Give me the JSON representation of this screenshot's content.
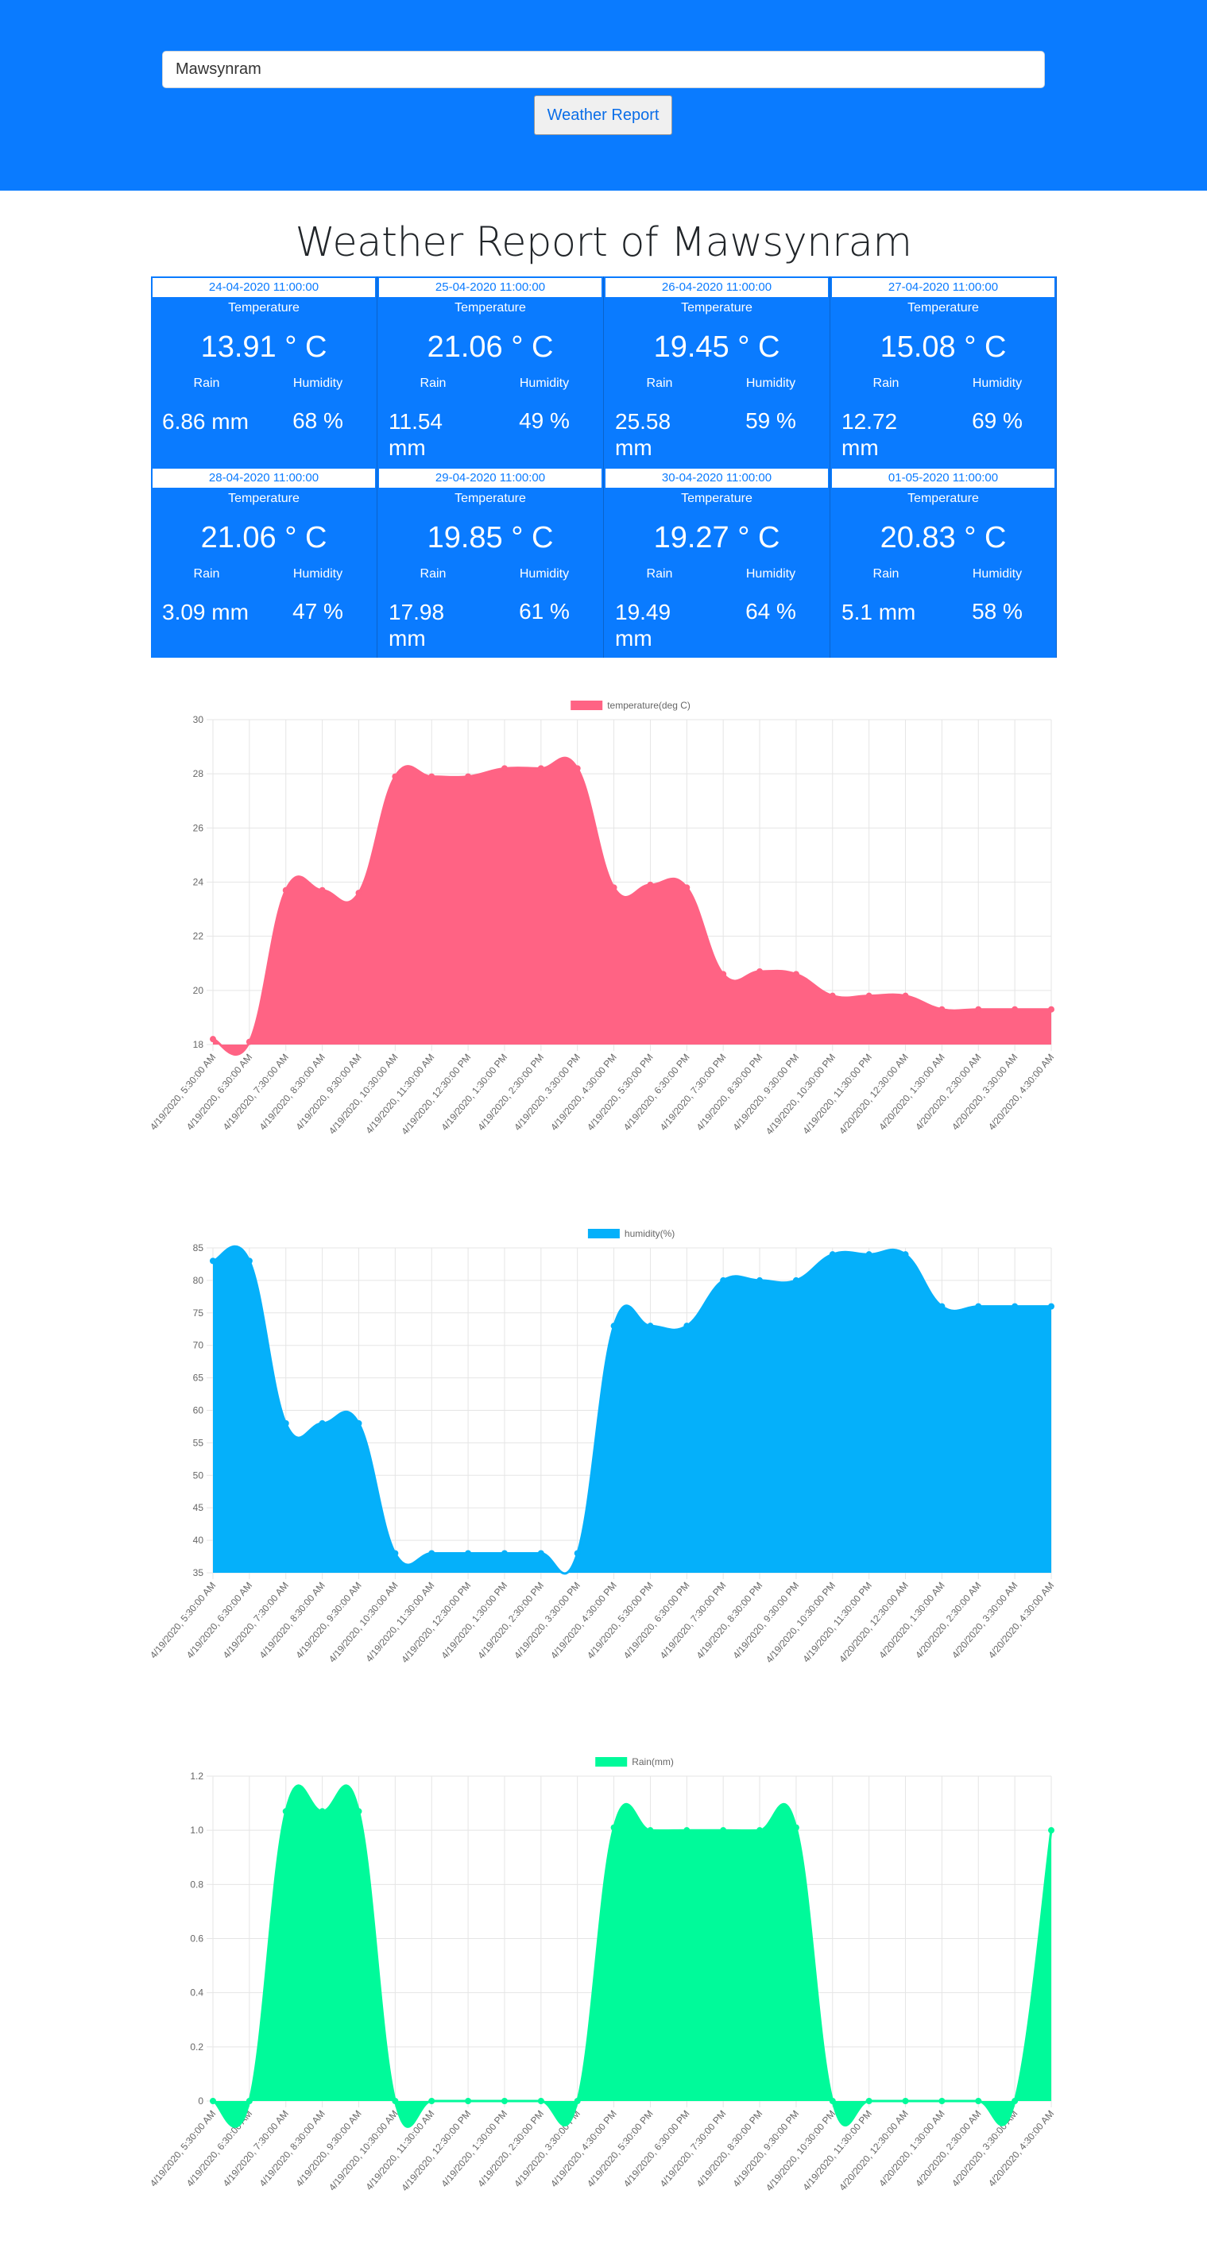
{
  "search": {
    "value": "Mawsynram"
  },
  "report_button": {
    "label": "Weather Report"
  },
  "title": "Weather Report of Mawsynram",
  "labels": {
    "temperature": "Temperature",
    "rain": "Rain",
    "humidity": "Humidity"
  },
  "forecast": [
    {
      "date": "24-04-2020 11:00:00",
      "temp": "13.91 ° C",
      "rain": "6.86 mm",
      "humidity": "68 %"
    },
    {
      "date": "25-04-2020 11:00:00",
      "temp": "21.06 ° C",
      "rain": "11.54 mm",
      "humidity": "49 %"
    },
    {
      "date": "26-04-2020 11:00:00",
      "temp": "19.45 ° C",
      "rain": "25.58 mm",
      "humidity": "59 %"
    },
    {
      "date": "27-04-2020 11:00:00",
      "temp": "15.08 ° C",
      "rain": "12.72 mm",
      "humidity": "69 %"
    },
    {
      "date": "28-04-2020 11:00:00",
      "temp": "21.06 ° C",
      "rain": "3.09 mm",
      "humidity": "47 %"
    },
    {
      "date": "29-04-2020 11:00:00",
      "temp": "19.85 ° C",
      "rain": "17.98 mm",
      "humidity": "61 %"
    },
    {
      "date": "30-04-2020 11:00:00",
      "temp": "19.27 ° C",
      "rain": "19.49 mm",
      "humidity": "64 %"
    },
    {
      "date": "01-05-2020 11:00:00",
      "temp": "20.83 ° C",
      "rain": "5.1 mm",
      "humidity": "58 %"
    }
  ],
  "chart_data": [
    {
      "type": "area",
      "title": "",
      "color": "#ff6384",
      "ylim": [
        18,
        30
      ],
      "yticks": [
        18,
        20,
        22,
        24,
        26,
        28,
        30
      ],
      "x": [
        "4/19/2020, 5:30:00 AM",
        "4/19/2020, 6:30:00 AM",
        "4/19/2020, 7:30:00 AM",
        "4/19/2020, 8:30:00 AM",
        "4/19/2020, 9:30:00 AM",
        "4/19/2020, 10:30:00 AM",
        "4/19/2020, 11:30:00 AM",
        "4/19/2020, 12:30:00 PM",
        "4/19/2020, 1:30:00 PM",
        "4/19/2020, 2:30:00 PM",
        "4/19/2020, 3:30:00 PM",
        "4/19/2020, 4:30:00 PM",
        "4/19/2020, 5:30:00 PM",
        "4/19/2020, 6:30:00 PM",
        "4/19/2020, 7:30:00 PM",
        "4/19/2020, 8:30:00 PM",
        "4/19/2020, 9:30:00 PM",
        "4/19/2020, 10:30:00 PM",
        "4/19/2020, 11:30:00 PM",
        "4/20/2020, 12:30:00 AM",
        "4/20/2020, 1:30:00 AM",
        "4/20/2020, 2:30:00 AM",
        "4/20/2020, 3:30:00 AM",
        "4/20/2020, 4:30:00 AM"
      ],
      "series": [
        {
          "name": "temperature(deg C)",
          "values": [
            18.2,
            18.1,
            23.7,
            23.7,
            23.6,
            27.9,
            27.9,
            27.9,
            28.2,
            28.2,
            28.2,
            23.8,
            23.9,
            23.8,
            20.6,
            20.7,
            20.6,
            19.8,
            19.8,
            19.8,
            19.3,
            19.3,
            19.3,
            19.3
          ]
        }
      ]
    },
    {
      "type": "area",
      "title": "",
      "color": "#05b0fa",
      "ylim": [
        35,
        85
      ],
      "yticks": [
        35,
        40,
        45,
        50,
        55,
        60,
        65,
        70,
        75,
        80,
        85
      ],
      "x": [
        "4/19/2020, 5:30:00 AM",
        "4/19/2020, 6:30:00 AM",
        "4/19/2020, 7:30:00 AM",
        "4/19/2020, 8:30:00 AM",
        "4/19/2020, 9:30:00 AM",
        "4/19/2020, 10:30:00 AM",
        "4/19/2020, 11:30:00 AM",
        "4/19/2020, 12:30:00 PM",
        "4/19/2020, 1:30:00 PM",
        "4/19/2020, 2:30:00 PM",
        "4/19/2020, 3:30:00 PM",
        "4/19/2020, 4:30:00 PM",
        "4/19/2020, 5:30:00 PM",
        "4/19/2020, 6:30:00 PM",
        "4/19/2020, 7:30:00 PM",
        "4/19/2020, 8:30:00 PM",
        "4/19/2020, 9:30:00 PM",
        "4/19/2020, 10:30:00 PM",
        "4/19/2020, 11:30:00 PM",
        "4/20/2020, 12:30:00 AM",
        "4/20/2020, 1:30:00 AM",
        "4/20/2020, 2:30:00 AM",
        "4/20/2020, 3:30:00 AM",
        "4/20/2020, 4:30:00 AM"
      ],
      "series": [
        {
          "name": "humidity(%)",
          "values": [
            83,
            83,
            58,
            58,
            58,
            38,
            38,
            38,
            38,
            38,
            38,
            73,
            73,
            73,
            80,
            80,
            80,
            84,
            84,
            84,
            76,
            76,
            76,
            76
          ]
        }
      ]
    },
    {
      "type": "area",
      "title": "",
      "color": "#00fa9a",
      "ylim": [
        0,
        1.2
      ],
      "yticks": [
        0,
        0.2,
        0.4,
        0.6,
        0.8,
        1.0,
        1.2
      ],
      "ytick_labels": [
        "0",
        "0.2",
        "0.4",
        "0.6",
        "0.8",
        "1.0",
        "1.2"
      ],
      "x": [
        "4/19/2020, 5:30:00 AM",
        "4/19/2020, 6:30:00 AM",
        "4/19/2020, 7:30:00 AM",
        "4/19/2020, 8:30:00 AM",
        "4/19/2020, 9:30:00 AM",
        "4/19/2020, 10:30:00 AM",
        "4/19/2020, 11:30:00 AM",
        "4/19/2020, 12:30:00 PM",
        "4/19/2020, 1:30:00 PM",
        "4/19/2020, 2:30:00 PM",
        "4/19/2020, 3:30:00 PM",
        "4/19/2020, 4:30:00 PM",
        "4/19/2020, 5:30:00 PM",
        "4/19/2020, 6:30:00 PM",
        "4/19/2020, 7:30:00 PM",
        "4/19/2020, 8:30:00 PM",
        "4/19/2020, 9:30:00 PM",
        "4/19/2020, 10:30:00 PM",
        "4/19/2020, 11:30:00 PM",
        "4/20/2020, 12:30:00 AM",
        "4/20/2020, 1:30:00 AM",
        "4/20/2020, 2:30:00 AM",
        "4/20/2020, 3:30:00 AM",
        "4/20/2020, 4:30:00 AM"
      ],
      "series": [
        {
          "name": "Rain(mm)",
          "values": [
            0,
            0,
            1.07,
            1.07,
            1.07,
            0,
            0,
            0,
            0,
            0,
            0,
            1.01,
            1,
            1,
            1,
            1,
            1.01,
            0,
            0,
            0,
            0,
            0,
            0,
            1
          ]
        }
      ]
    }
  ]
}
